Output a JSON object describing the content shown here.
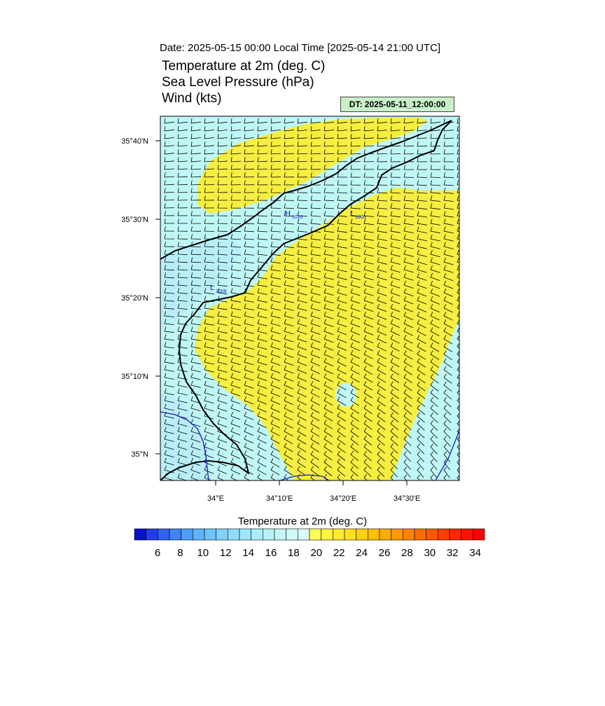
{
  "header": {
    "date_line": "Date: 2025-05-15  00:00 Local Time [2025-05-14  21:00 UTC]",
    "title_1": "Temperature at 2m   (deg. C)",
    "title_2": "Sea Level Pressure   (hPa)",
    "title_3": "Wind   (kts)",
    "dt_label": "DT: 2025-05-11_12:00:00"
  },
  "map": {
    "lat_labels": [
      "35°40'N",
      "35°30'N",
      "35°20'N",
      "35°10'N",
      "35°N"
    ],
    "lon_labels": [
      "34°E",
      "34°10'E",
      "34°20'E",
      "34°30'E"
    ],
    "pressure_markers": [
      {
        "letter": "H",
        "value": "1010"
      },
      {
        "letter": "L",
        "value": "1009"
      },
      {
        "letter": "L",
        "value": "1008"
      }
    ],
    "colors": {
      "land_warm": "#f6ee40",
      "sea_cool": "#bff7f6",
      "sea_cooler": "#b8eef8",
      "coast": "#000000",
      "isobar": "#1a1acc"
    }
  },
  "colorbar": {
    "title": "Temperature at 2m  (deg. C)",
    "tick_labels": [
      "6",
      "8",
      "10",
      "12",
      "14",
      "16",
      "18",
      "20",
      "22",
      "24",
      "26",
      "28",
      "30",
      "32",
      "34"
    ],
    "colors": [
      "#0a12cc",
      "#1f3fe6",
      "#2f62f0",
      "#3d84f5",
      "#4a9ff8",
      "#5cb4fa",
      "#6cc5fb",
      "#7dd3fb",
      "#8edefb",
      "#9ce6fb",
      "#abeefb",
      "#b8f3fa",
      "#c4f7f8",
      "#d0f9f7",
      "#dcfbf8",
      "#fffe55",
      "#fff440",
      "#ffea30",
      "#ffe020",
      "#ffd010",
      "#ffc000",
      "#ffac00",
      "#ff9800",
      "#ff8400",
      "#ff6f00",
      "#ff5800",
      "#ff4000",
      "#ff2800",
      "#ff1200",
      "#ff0000"
    ]
  }
}
